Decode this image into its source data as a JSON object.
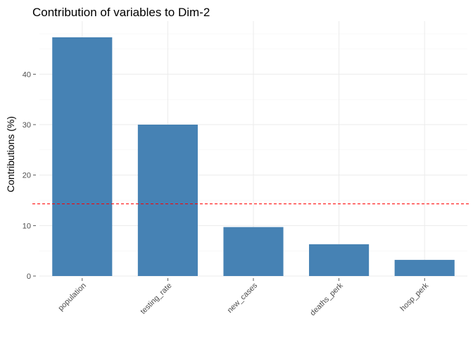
{
  "chart_data": {
    "type": "bar",
    "title": "Contribution of variables to Dim-2",
    "xlabel": "",
    "ylabel": "Contributions (%)",
    "categories": [
      "population",
      "testing_rate",
      "new_cases",
      "deaths_perk",
      "hosp_perk"
    ],
    "values": [
      47.3,
      30.0,
      9.7,
      6.3,
      3.2
    ],
    "reference_line": 14.3,
    "ylim": [
      0,
      50
    ],
    "yticks": [
      0,
      10,
      20,
      30,
      40
    ],
    "grid": true,
    "bar_color": "#4682B4",
    "reference_line_color": "#FF0000"
  }
}
